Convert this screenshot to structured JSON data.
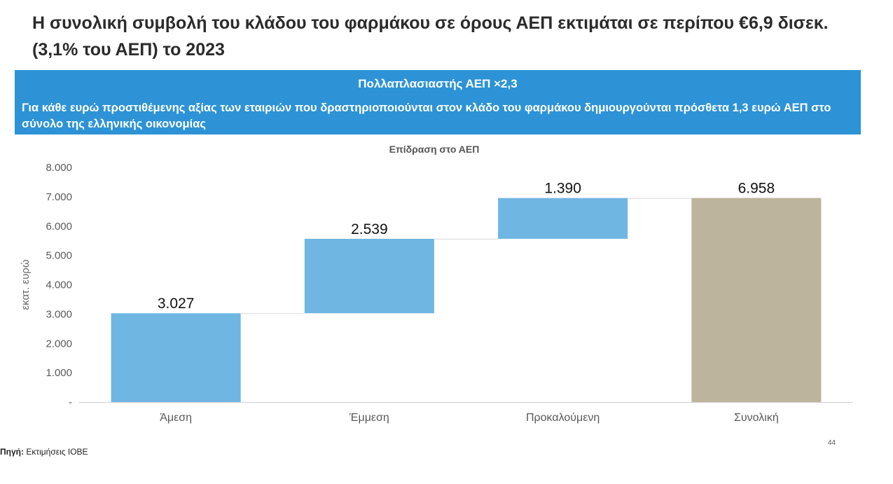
{
  "slide": {
    "title": "Η συνολική συμβολή του κλάδου του φαρμάκου σε όρους ΑΕΠ εκτιμάται σε περίπου €6,9 δισεκ. (3,1% του ΑΕΠ) το 2023",
    "banner_heading": "Πολλαπλασιαστής ΑΕΠ ×2,3",
    "banner_text": "Για κάθε ευρώ προστιθέμενης αξίας των εταιριών που δραστηριοποιούνται στον κλάδο του φαρμάκου δημιουργούνται πρόσθετα 1,3 ευρώ ΑΕΠ στο σύνολο της ελληνικής οικονομίας",
    "source_label": "Πηγή:",
    "source_text": "Εκτιμήσεις ΙΟΒΕ",
    "page_number": "44"
  },
  "colors": {
    "banner": "#2d93d6",
    "bar_increment": "#70b6e3",
    "bar_total": "#bdb49e"
  },
  "chart_data": {
    "type": "bar",
    "subtype": "waterfall",
    "title": "Επίδραση στο ΑΕΠ",
    "ylabel": "εκατ. ευρώ",
    "xlabel": "",
    "categories": [
      "Άμεση",
      "Έμμεση",
      "Προκαλούμενη",
      "Συνολική"
    ],
    "values": [
      3027,
      2539,
      1390,
      6958
    ],
    "bases": [
      0,
      3027,
      5566,
      0
    ],
    "is_total": [
      false,
      false,
      false,
      true
    ],
    "data_labels": [
      "3.027",
      "2.539",
      "1.390",
      "6.958"
    ],
    "ylim": [
      0,
      8000
    ],
    "yticks": [
      0,
      1000,
      2000,
      3000,
      4000,
      5000,
      6000,
      7000,
      8000
    ],
    "ytick_labels": [
      "-",
      "1.000",
      "2.000",
      "3.000",
      "4.000",
      "5.000",
      "6.000",
      "7.000",
      "8.000"
    ],
    "connector_lines": true,
    "grid": false,
    "legend": "none"
  }
}
